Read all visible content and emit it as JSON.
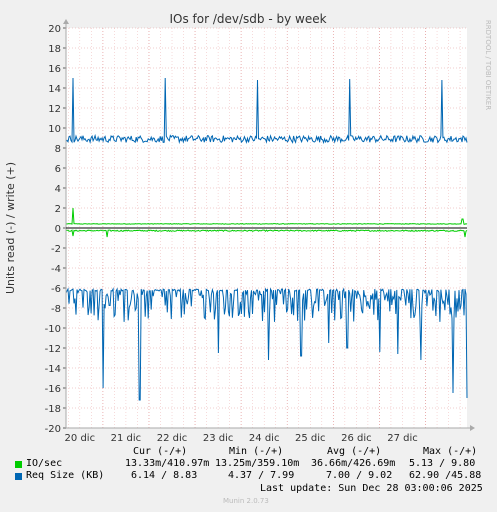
{
  "chart_data": {
    "type": "line",
    "title": "IOs for /dev/sdb - by week",
    "ylabel": "Units read (-) / write (+)",
    "side_label": "RRDTOOL / TOBI OETIKER",
    "ylim": [
      -20,
      20
    ],
    "yticks": [
      20,
      18,
      16,
      14,
      12,
      10,
      8,
      6,
      4,
      2,
      0,
      -2,
      -4,
      -6,
      -8,
      -10,
      -12,
      -14,
      -16,
      -18,
      -20
    ],
    "xtick_labels": [
      "20 dic",
      "21 dic",
      "22 dic",
      "23 dic",
      "24 dic",
      "25 dic",
      "26 dic",
      "27 dic"
    ],
    "grid": true,
    "series": [
      {
        "name": "IO/sec",
        "color": "#00cc00",
        "write_baseline": 0.41,
        "read_baseline": -0.27,
        "write_spikes": [
          {
            "day": 19.35,
            "value": 2.0
          },
          {
            "day": 27.8,
            "value": 0.9
          }
        ],
        "read_spikes": [
          {
            "day": 19.35,
            "value": -0.8
          },
          {
            "day": 20.1,
            "value": -0.9
          },
          {
            "day": 27.85,
            "value": -0.9
          }
        ]
      },
      {
        "name": "Req Size (KB)",
        "color": "#0066b3",
        "write_baseline": 8.9,
        "read_baseline": -6.2,
        "write_spikes": [
          {
            "day": 19.35,
            "value": 15.0
          },
          {
            "day": 21.35,
            "value": 15.0
          },
          {
            "day": 23.35,
            "value": 14.8
          },
          {
            "day": 25.35,
            "value": 14.9
          },
          {
            "day": 27.35,
            "value": 14.8
          }
        ],
        "read_spikes": [
          {
            "day": 20.0,
            "value": -16.0
          },
          {
            "day": 20.8,
            "value": -17.2
          },
          {
            "day": 22.5,
            "value": -12.5
          },
          {
            "day": 23.6,
            "value": -13.2
          },
          {
            "day": 24.3,
            "value": -12.8
          },
          {
            "day": 24.9,
            "value": -11.5
          },
          {
            "day": 25.3,
            "value": -12.0
          },
          {
            "day": 26.0,
            "value": -12.4
          },
          {
            "day": 26.4,
            "value": -12.6
          },
          {
            "day": 26.9,
            "value": -13.2
          },
          {
            "day": 27.6,
            "value": -16.5
          },
          {
            "day": 27.9,
            "value": -17.0
          }
        ]
      }
    ]
  },
  "legend": {
    "header": {
      "cur": "Cur (-/+)",
      "min": "Min (-/+)",
      "avg": "Avg (-/+)",
      "max": "Max (-/+)"
    },
    "rows": [
      {
        "name": "IO/sec",
        "color": "#00cc00",
        "cur": "13.33m/410.97m",
        "min": "13.25m/359.10m",
        "avg": "36.66m/426.69m",
        "max": "5.13 / 9.80"
      },
      {
        "name": "Req Size (KB)",
        "color": "#0066b3",
        "cur": "6.14 / 8.83",
        "min": "4.37 / 7.99",
        "avg": "7.00 / 9.02",
        "max": "62.90 /45.88"
      }
    ]
  },
  "footer": {
    "last_update": "Last update: Sun Dec 28 03:00:06 2025",
    "munin": "Munin 2.0.73"
  }
}
